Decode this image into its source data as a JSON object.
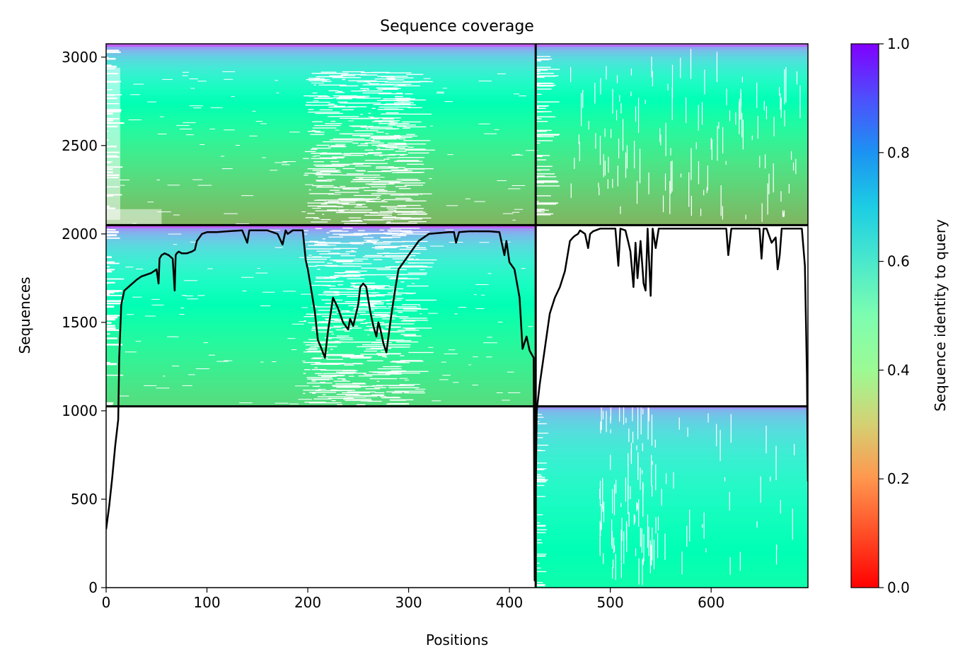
{
  "chart_data": {
    "type": "heatmap",
    "title": "Sequence coverage",
    "xlabel": "Positions",
    "ylabel": "Sequences",
    "xlim": [
      0,
      696
    ],
    "ylim": [
      0,
      3075
    ],
    "x_ticks": [
      0,
      100,
      200,
      300,
      400,
      500,
      600
    ],
    "y_ticks": [
      0,
      500,
      1000,
      1500,
      2000,
      2500,
      3000
    ],
    "colorbar": {
      "label": "Sequence identity to query",
      "range": [
        0,
        1
      ],
      "ticks": [
        "0.0",
        "0.2",
        "0.4",
        "0.6",
        "0.8",
        "1.0"
      ],
      "colormap": "rainbow_r"
    },
    "chain_boundary_position": 426,
    "row_boundaries": [
      1025,
      2050
    ],
    "blocks": [
      {
        "x_range": [
          0,
          426
        ],
        "y_range": [
          1025,
          2050
        ],
        "identity_top": 0.88,
        "identity_bottom": 0.33,
        "gaps": "sparse gaps left of position 12; dense gaps positions 195-300"
      },
      {
        "x_range": [
          0,
          426
        ],
        "y_range": [
          2050,
          3075
        ],
        "identity_top": 0.88,
        "identity_bottom": 0.25,
        "gaps": "gaps left of position 12; dense gaps positions 195-300"
      },
      {
        "x_range": [
          426,
          696
        ],
        "y_range": [
          2050,
          3075
        ],
        "identity_top": 0.86,
        "identity_bottom": 0.25,
        "gaps": "gaps left of position 445; scattered vertical gaps 470-560"
      },
      {
        "x_range": [
          426,
          696
        ],
        "y_range": [
          0,
          1025
        ],
        "identity_top": 0.8,
        "identity_bottom": 0.47,
        "gaps": "gaps left of position 430; scattered vertical gaps 490-545"
      },
      {
        "x_range": [
          0,
          426
        ],
        "y_range": [
          0,
          1025
        ],
        "identity_top": null,
        "identity_bottom": null,
        "gaps": "empty"
      },
      {
        "x_range": [
          426,
          696
        ],
        "y_range": [
          1025,
          2050
        ],
        "identity_top": null,
        "identity_bottom": null,
        "gaps": "empty"
      }
    ],
    "coverage": {
      "x": [
        0,
        3,
        6,
        9,
        12,
        13,
        15,
        18,
        22,
        26,
        30,
        35,
        40,
        45,
        50,
        52,
        53,
        55,
        58,
        62,
        66,
        68,
        69,
        70,
        72,
        75,
        80,
        85,
        88,
        90,
        95,
        100,
        110,
        120,
        135,
        140,
        142,
        145,
        150,
        160,
        170,
        175,
        178,
        180,
        185,
        195,
        198,
        200,
        203,
        207,
        210,
        213,
        217,
        220,
        225,
        230,
        235,
        240,
        242,
        245,
        250,
        252,
        255,
        258,
        262,
        265,
        268,
        270,
        272,
        275,
        278,
        280,
        283,
        287,
        290,
        295,
        300,
        310,
        320,
        340,
        345,
        347,
        350,
        360,
        370,
        380,
        390,
        395,
        397,
        400,
        405,
        410,
        413,
        417,
        420,
        424,
        425,
        427,
        430,
        435,
        440,
        445,
        450,
        455,
        460,
        463,
        465,
        468,
        470,
        475,
        478,
        480,
        483,
        490,
        500,
        505,
        508,
        510,
        515,
        518,
        520,
        523,
        525,
        527,
        530,
        533,
        535,
        537,
        540,
        542,
        545,
        548,
        550,
        560,
        580,
        600,
        615,
        617,
        620,
        640,
        648,
        650,
        652,
        655,
        660,
        664,
        666,
        668,
        670,
        675,
        680,
        690,
        693,
        695,
        696
      ],
      "y": [
        330,
        460,
        620,
        800,
        950,
        1300,
        1600,
        1680,
        1700,
        1720,
        1740,
        1760,
        1770,
        1780,
        1800,
        1720,
        1860,
        1880,
        1890,
        1880,
        1860,
        1680,
        1880,
        1890,
        1900,
        1890,
        1890,
        1900,
        1910,
        1960,
        2000,
        2010,
        2010,
        2015,
        2020,
        1950,
        2020,
        2020,
        2020,
        2020,
        2000,
        1940,
        2020,
        2000,
        2020,
        2020,
        1850,
        1800,
        1700,
        1560,
        1400,
        1360,
        1300,
        1450,
        1640,
        1580,
        1500,
        1460,
        1520,
        1480,
        1600,
        1700,
        1720,
        1700,
        1560,
        1480,
        1420,
        1500,
        1460,
        1380,
        1330,
        1420,
        1550,
        1700,
        1800,
        1840,
        1880,
        1960,
        2000,
        2010,
        2010,
        1950,
        2010,
        2015,
        2015,
        2015,
        2010,
        1880,
        1960,
        1840,
        1800,
        1640,
        1350,
        1420,
        1340,
        1300,
        40,
        1000,
        1150,
        1350,
        1550,
        1640,
        1700,
        1790,
        1960,
        1980,
        1990,
        2000,
        2020,
        2000,
        1920,
        2000,
        2015,
        2030,
        2030,
        2030,
        1820,
        2030,
        2020,
        1950,
        1900,
        1700,
        1950,
        1750,
        1960,
        1720,
        1680,
        2030,
        1650,
        2030,
        1920,
        2030,
        2030,
        2030,
        2030,
        2030,
        2030,
        1880,
        2030,
        2030,
        2030,
        1860,
        2030,
        2030,
        1950,
        1980,
        1800,
        1880,
        2030,
        2030,
        2030,
        2030,
        1820,
        1200,
        600
      ]
    }
  }
}
